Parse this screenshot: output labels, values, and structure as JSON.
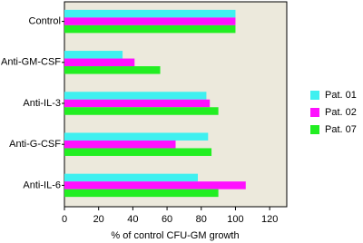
{
  "chart_data": {
    "type": "bar",
    "orientation": "horizontal",
    "x_label": "% of control CFU-GM growth",
    "categories": [
      "Control",
      "Anti-GM-CSF",
      "Anti-IL-3",
      "Anti-G-CSF",
      "Anti-IL-6"
    ],
    "series": [
      {
        "name": "Pat. 01",
        "color": "#3ff0f0",
        "values": [
          100,
          34,
          83,
          84,
          78
        ]
      },
      {
        "name": "Pat. 02",
        "color": "#ff10ff",
        "values": [
          100,
          41,
          85,
          65,
          106
        ]
      },
      {
        "name": "Pat. 07",
        "color": "#22ee22",
        "values": [
          100,
          56,
          90,
          86,
          90
        ]
      }
    ],
    "xlim": [
      0,
      130
    ],
    "xticks": [
      0,
      20,
      40,
      60,
      80,
      100,
      120
    ],
    "background": "#ece9dc",
    "legend": "right"
  }
}
